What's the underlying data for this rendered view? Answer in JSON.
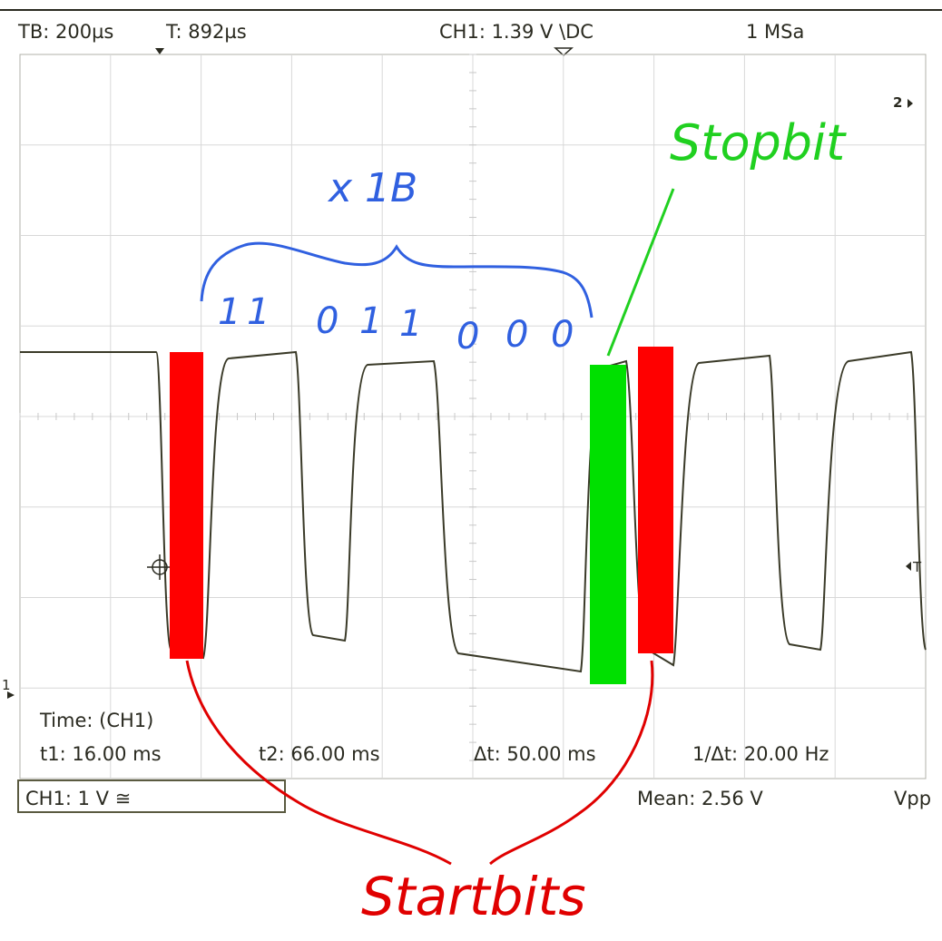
{
  "header": {
    "timebase": "TB: 200µs",
    "trigger_time": "T: 892µs",
    "channel_setting": "CH1: 1.39 V \\DC",
    "sample_rate": "1 MSa"
  },
  "markers": {
    "ch2_marker": "2",
    "trigger_marker": "T",
    "ch1_marker": "1"
  },
  "measurements": {
    "title": "Time: (CH1)",
    "t1": "t1: 16.00 ms",
    "t2": "t2: 66.00 ms",
    "delta_t": "Δt: 50.00 ms",
    "inv_delta_t": "1/Δt: 20.00 Hz"
  },
  "footer": {
    "channel_scale": "CH1: 1 V ≅",
    "mean": "Mean: 2.56 V",
    "vpp": "Vpp"
  },
  "annotations": {
    "stopbit_label": "Stopbit",
    "byte_label": "x 1B",
    "bits": [
      "1",
      "1",
      "0",
      "1",
      "1",
      "0",
      "0",
      "0"
    ],
    "startbits_label": "Startbits"
  },
  "colors": {
    "screen_bg": "#ffffff",
    "grid": "#d8d8d8",
    "trace": "#3a3a28",
    "text": "#2a2a20",
    "startbit": "#ff0000",
    "stopbit": "#00e000",
    "blue_annotation": "#3060e0",
    "green_annotation": "#20d020",
    "red_annotation": "#e00000"
  }
}
